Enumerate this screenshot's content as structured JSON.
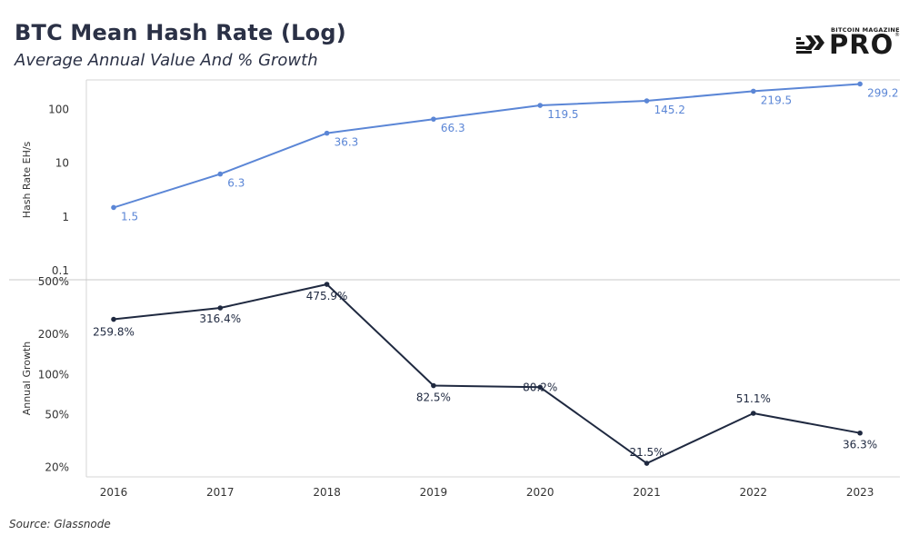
{
  "header": {
    "title": "BTC Mean Hash Rate (Log)",
    "subtitle": "Average Annual Value And % Growth"
  },
  "logo": {
    "top_text": "BITCOIN MAGAZINE",
    "main_text": "PRO",
    "reg_mark": "®"
  },
  "footer": {
    "source": "Source: Glassnode"
  },
  "colors": {
    "hash_rate_line": "#5b86d6",
    "growth_line": "#1f2940",
    "grid": "#d4d4d4"
  },
  "chart_data": {
    "type": "line",
    "x_axis": {
      "categories": [
        "2016",
        "2017",
        "2018",
        "2019",
        "2020",
        "2021",
        "2022",
        "2023"
      ]
    },
    "panels": [
      {
        "ylabel": "Hash Rate EH/s",
        "scale": "log",
        "ylim": [
          0.1,
          400
        ],
        "y_ticks": [
          0.1,
          1,
          10,
          100
        ],
        "y_tick_labels": [
          "0.1",
          "1",
          "10",
          "100"
        ],
        "series": {
          "values": [
            1.5,
            6.3,
            36.3,
            66.3,
            119.5,
            145.2,
            219.5,
            299.2
          ],
          "labels": [
            "1.5",
            "6.3",
            "36.3",
            "66.3",
            "119.5",
            "145.2",
            "219.5",
            "299.2"
          ],
          "color": "#5b86d6"
        }
      },
      {
        "ylabel": "Annual Growth",
        "scale": "log",
        "ylim": [
          17,
          540
        ],
        "y_ticks": [
          20,
          50,
          100,
          200,
          500
        ],
        "y_tick_labels": [
          "20%",
          "50%",
          "100%",
          "200%",
          "500%"
        ],
        "series": {
          "values": [
            259.8,
            316.4,
            475.9,
            82.5,
            80.2,
            21.5,
            51.1,
            36.3
          ],
          "labels": [
            "259.8%",
            "316.4%",
            "475.9%",
            "82.5%",
            "80.2%",
            "21.5%",
            "51.1%",
            "36.3%"
          ],
          "color": "#1f2940"
        }
      }
    ]
  }
}
